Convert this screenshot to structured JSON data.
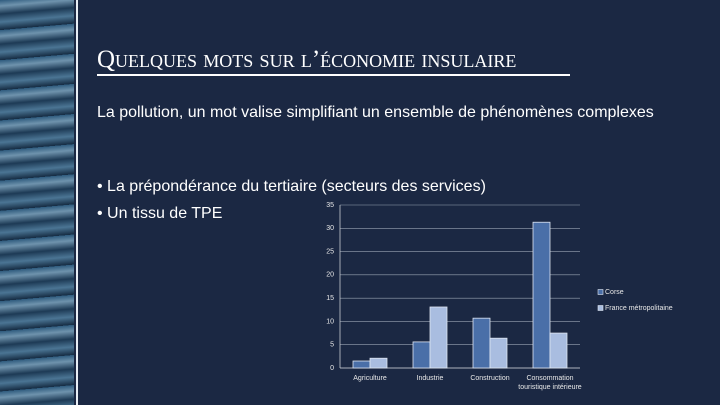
{
  "slide": {
    "title": "Quelques mots sur l’économie insulaire",
    "paragraph": "La pollution, un mot valise simplifiant un ensemble de phénomènes complexes",
    "bullets": [
      "• La prépondérance du tertiaire (secteurs des services)",
      "• Un tissu de TPE"
    ]
  },
  "chart_data": {
    "type": "bar",
    "categories": [
      "Agriculture",
      "Industrie",
      "Construction",
      "Consommation touristique intérieure"
    ],
    "series": [
      {
        "name": "Corse",
        "color": "#4a6fa8",
        "values": [
          1.5,
          5.6,
          10.7,
          31.3
        ]
      },
      {
        "name": "France métropolitaine",
        "color": "#a9bde0",
        "values": [
          2.1,
          13.1,
          6.4,
          7.5
        ]
      }
    ],
    "ylim": [
      0,
      35
    ],
    "yticks": [
      0,
      5,
      10,
      15,
      20,
      25,
      30,
      35
    ],
    "grid": true,
    "legend": "right"
  }
}
